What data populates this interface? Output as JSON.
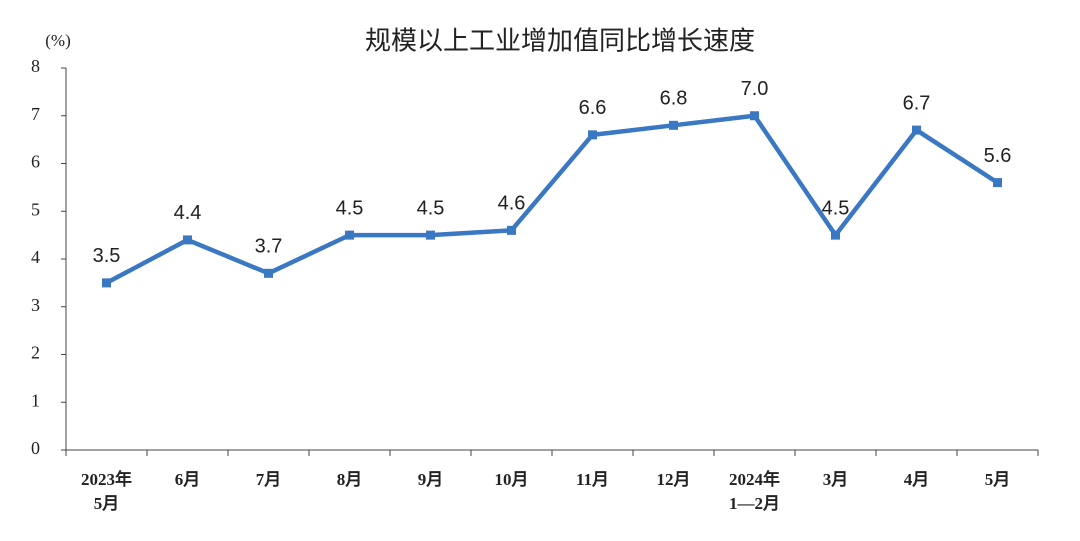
{
  "chart_data": {
    "type": "line",
    "title": "规模以上工业增加值同比增长速度",
    "y_label": "(%)",
    "categories": [
      "2023年\n5月",
      "6月",
      "7月",
      "8月",
      "9月",
      "10月",
      "11月",
      "12月",
      "2024年\n1—2月",
      "3月",
      "4月",
      "5月"
    ],
    "values": [
      3.5,
      4.4,
      3.7,
      4.5,
      4.5,
      4.6,
      6.6,
      6.8,
      7.0,
      4.5,
      6.7,
      5.6
    ],
    "value_labels": [
      "3.5",
      "4.4",
      "3.7",
      "4.5",
      "4.5",
      "4.6",
      "6.6",
      "6.8",
      "7.0",
      "4.5",
      "6.7",
      "5.6"
    ],
    "color": "#3a78c3",
    "ylim": [
      0,
      8
    ],
    "yticks": [
      0,
      1,
      2,
      3,
      4,
      5,
      6,
      7,
      8
    ],
    "grid": false
  }
}
